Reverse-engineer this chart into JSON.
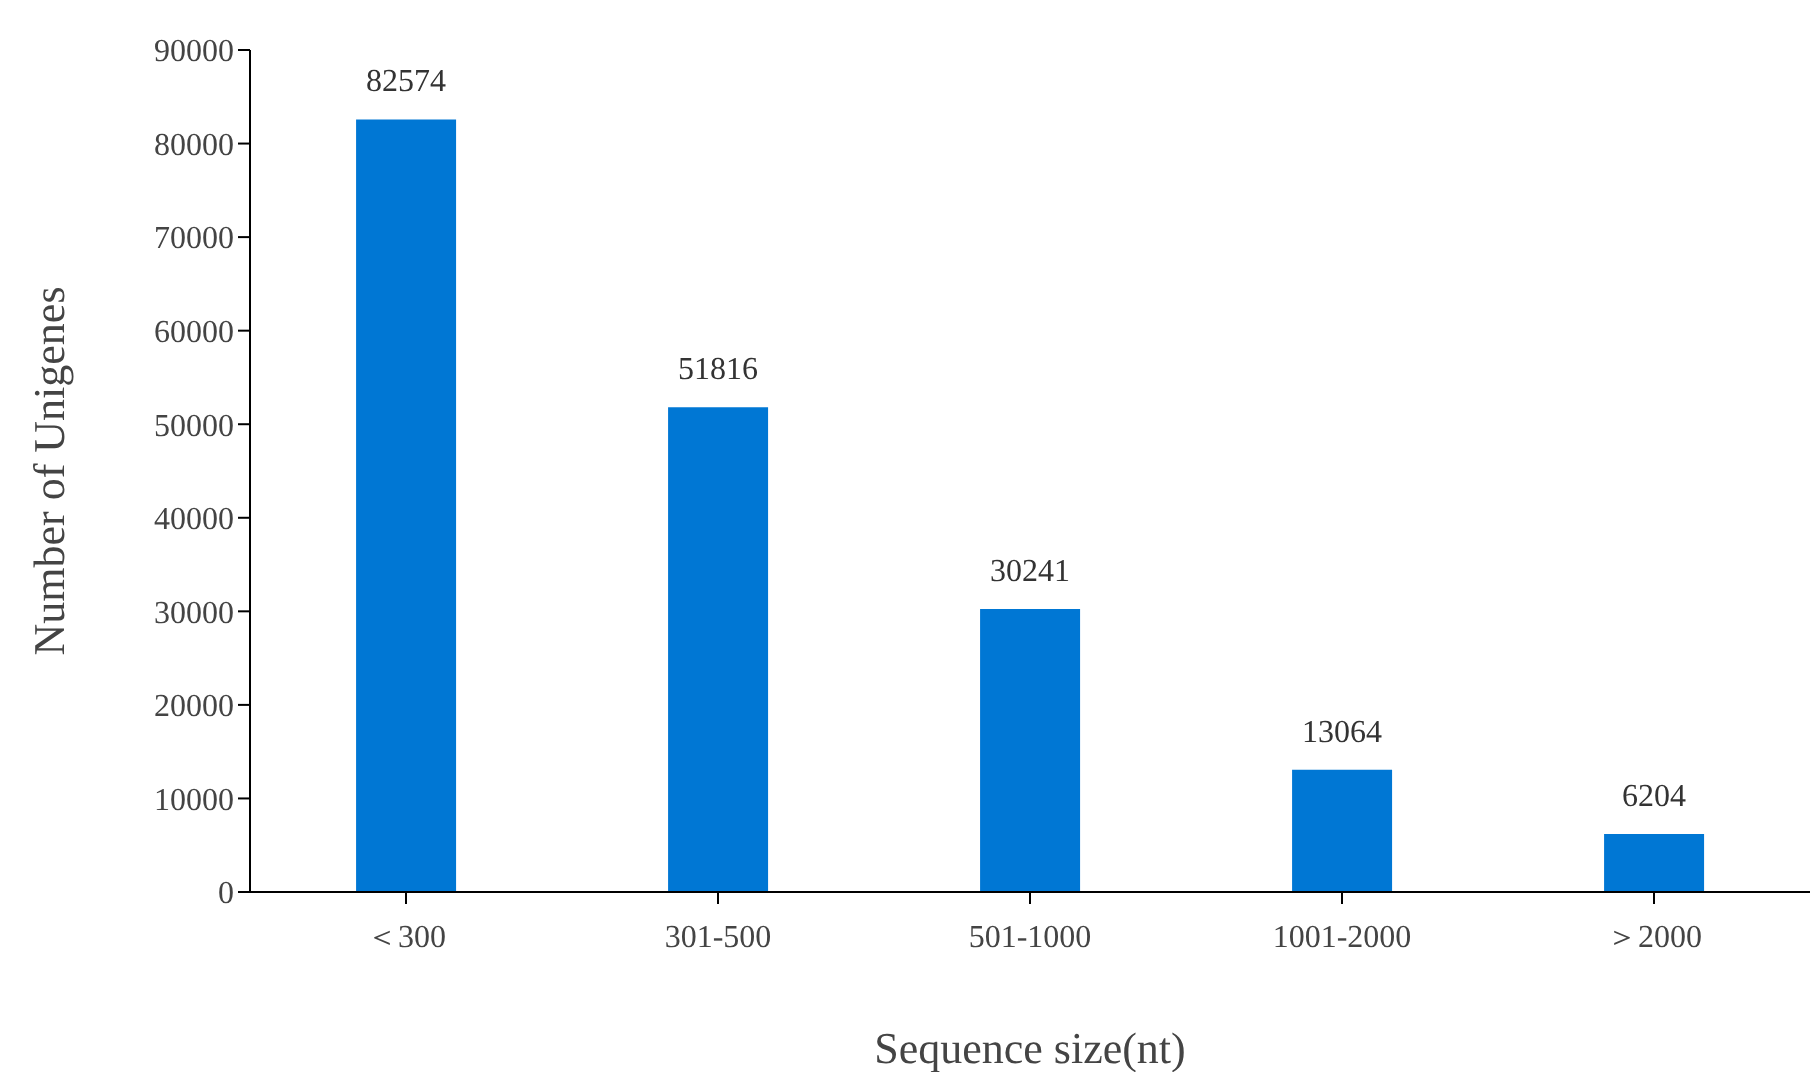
{
  "chart_data": {
    "type": "bar",
    "xlabel": "Sequence size(nt)",
    "ylabel": "Number of Unigenes",
    "categories": [
      "＜300",
      "301-500",
      "501-1000",
      "1001-2000",
      "＞2000"
    ],
    "values": [
      82574,
      51816,
      30241,
      13064,
      6204
    ],
    "color": "#0077d4",
    "ylim": [
      0,
      90000
    ],
    "yticks": [
      0,
      10000,
      20000,
      30000,
      40000,
      50000,
      60000,
      70000,
      80000,
      90000
    ],
    "grid": false,
    "data_labels": true
  }
}
